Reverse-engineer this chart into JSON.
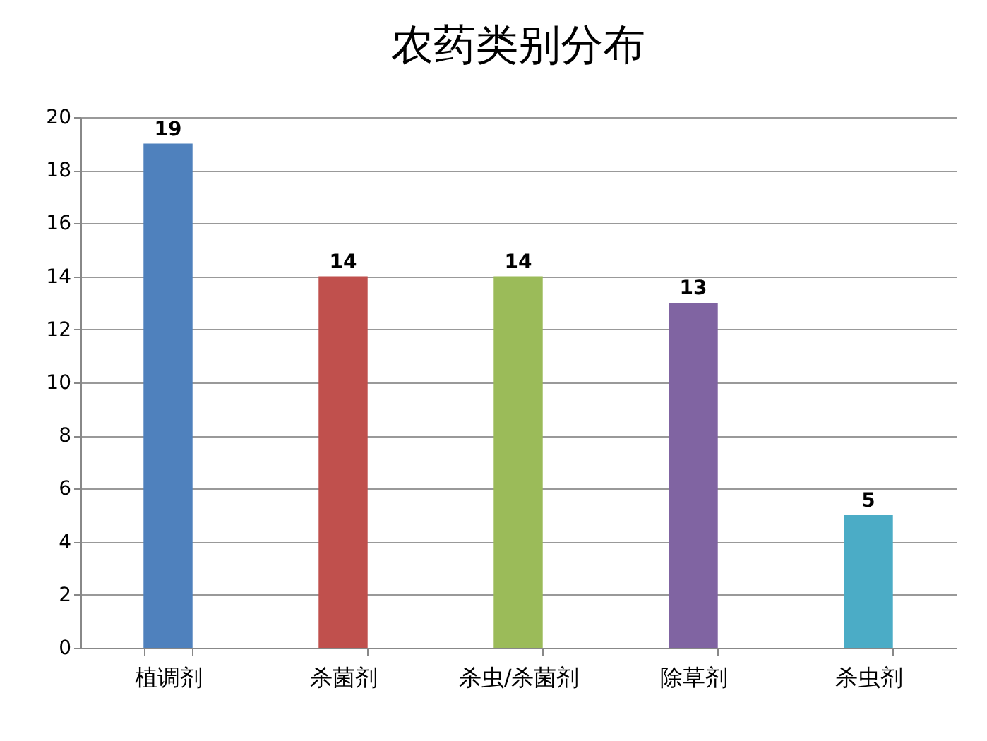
{
  "chart_data": {
    "type": "bar",
    "title": "农药类别分布",
    "categories": [
      "植调剂",
      "杀菌剂",
      "杀虫/杀菌剂",
      "除草剂",
      "杀虫剂"
    ],
    "values": [
      19,
      14,
      14,
      13,
      5
    ],
    "colors": [
      "#4f81bd",
      "#c0504d",
      "#9bbb59",
      "#8064a2",
      "#4bacc6"
    ],
    "ylim": [
      0,
      20
    ],
    "yticks": [
      0,
      2,
      4,
      6,
      8,
      10,
      12,
      14,
      16,
      18,
      20
    ],
    "grid": "y",
    "data_labels": true
  }
}
